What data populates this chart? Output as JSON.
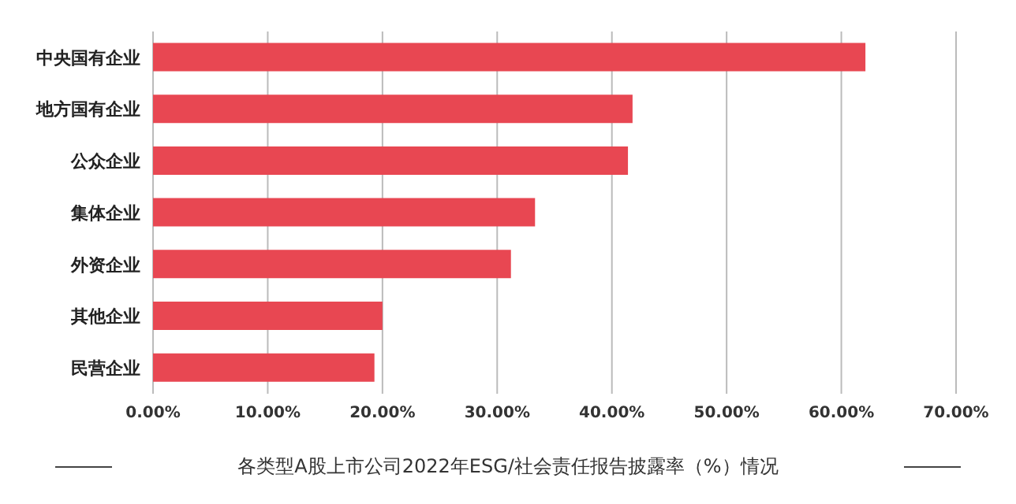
{
  "chart_data": {
    "type": "bar",
    "orientation": "horizontal",
    "title": "各类型A股上市公司2022年ESG/社会责任报告披露率（%）情况",
    "categories": [
      "中央国有企业",
      "地方国有企业",
      "公众企业",
      "集体企业",
      "外资企业",
      "其他企业",
      "民营企业"
    ],
    "values": [
      62.1,
      41.8,
      41.4,
      33.3,
      31.2,
      20.0,
      19.3
    ],
    "color": "#e84752",
    "xlim": [
      0,
      70
    ],
    "xticks": [
      {
        "value": 0,
        "label": "0.00%"
      },
      {
        "value": 10,
        "label": "10.00%"
      },
      {
        "value": 20,
        "label": "20.00%"
      },
      {
        "value": 30,
        "label": "30.00%"
      },
      {
        "value": 40,
        "label": "40.00%"
      },
      {
        "value": 50,
        "label": "50.00%"
      },
      {
        "value": 60,
        "label": "60.00%"
      },
      {
        "value": 70,
        "label": "70.00%"
      }
    ],
    "grid": "x"
  }
}
